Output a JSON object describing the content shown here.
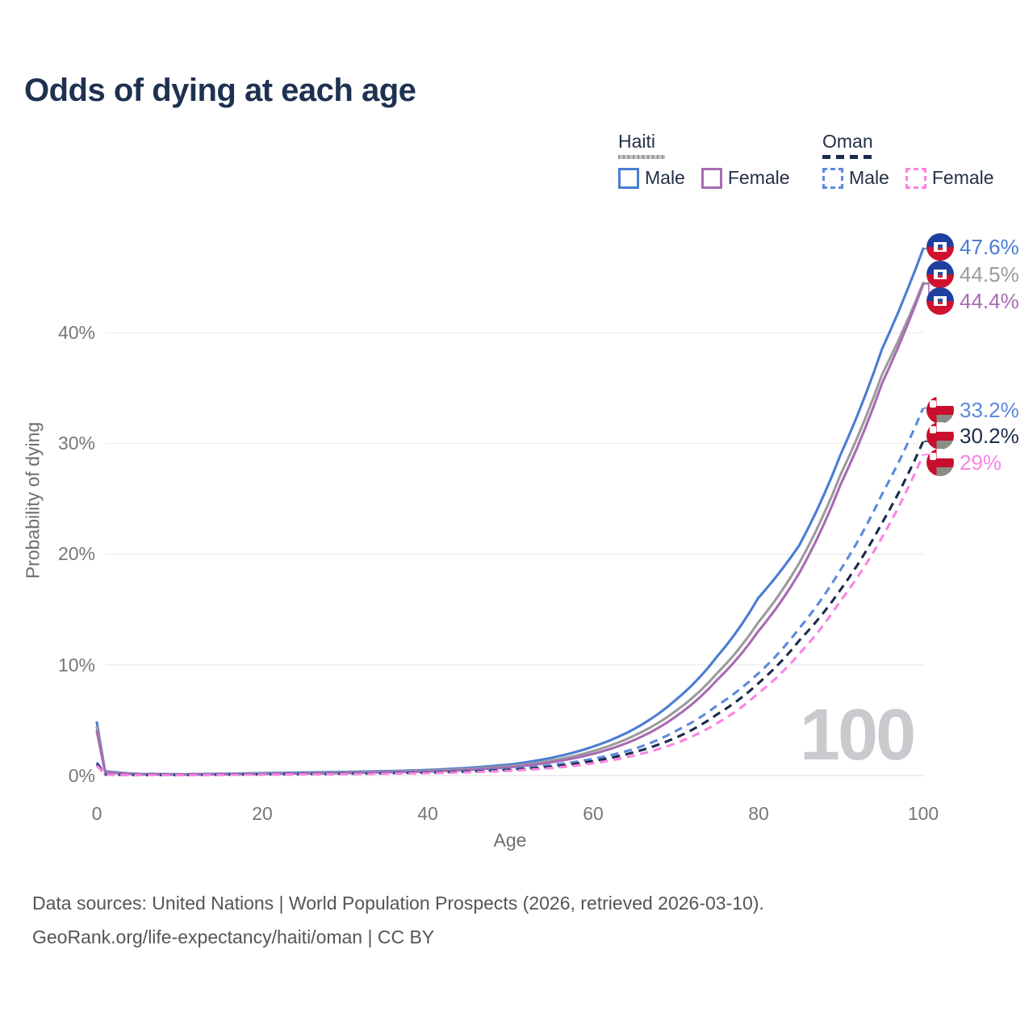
{
  "header": {
    "title": "Odds of dying at each age"
  },
  "legend": {
    "groups": [
      {
        "country": "Haiti",
        "line_style": "solid",
        "items": [
          {
            "label": "Male"
          },
          {
            "label": "Female"
          }
        ]
      },
      {
        "country": "Oman",
        "line_style": "dashed",
        "items": [
          {
            "label": "Male"
          },
          {
            "label": "Female"
          }
        ]
      }
    ]
  },
  "axes": {
    "y_title": "Probability of dying",
    "x_title": "Age",
    "y_ticks": [
      "40%",
      "30%",
      "20%",
      "10%",
      "0%"
    ],
    "x_ticks": [
      "0",
      "20",
      "40",
      "60",
      "80",
      "100"
    ]
  },
  "watermark": "100",
  "icons": {
    "haiti_flag": "circular Haiti flag (blue over red, white emblem)",
    "oman_flag": "circular Oman flag (red band, white/red/green stripes)"
  },
  "colors": {
    "title_text": "#1e3150",
    "axis_text": "#76777c",
    "grid": "#ededf0",
    "watermark": "#c9c9ce",
    "haiti_total_line": "#9b9b9b",
    "oman_total_line": "#1b2b4d"
  },
  "footer": {
    "line1": "Data sources: United Nations | World Population Prospects (2026, retrieved 2026-03-10).",
    "line2": "GeoRank.org/life-expectancy/haiti/oman | CC BY"
  },
  "chart_data": {
    "type": "line",
    "title": "Odds of dying at each age",
    "xlabel": "Age",
    "ylabel": "Probability of dying",
    "xlim": [
      0,
      100
    ],
    "ylim_pct": [
      0,
      50
    ],
    "x_ticks": [
      0,
      20,
      40,
      60,
      80,
      100
    ],
    "y_ticks_pct": [
      40,
      30,
      20,
      10,
      0
    ],
    "grid": "horizontal",
    "legend_position": "top-right",
    "age_cursor": "100",
    "series": [
      {
        "name": "Haiti male",
        "country": "Haiti",
        "sex": "male",
        "style": "solid",
        "color": "#4a7dd3",
        "end_label": "47.6%",
        "end_value_pct": 47.6,
        "points_age_pct": [
          [
            0,
            4.8
          ],
          [
            1,
            0.4
          ],
          [
            5,
            0.15
          ],
          [
            10,
            0.12
          ],
          [
            15,
            0.16
          ],
          [
            20,
            0.22
          ],
          [
            25,
            0.28
          ],
          [
            30,
            0.33
          ],
          [
            35,
            0.4
          ],
          [
            40,
            0.5
          ],
          [
            45,
            0.7
          ],
          [
            50,
            1.0
          ],
          [
            55,
            1.6
          ],
          [
            60,
            2.6
          ],
          [
            65,
            4.2
          ],
          [
            70,
            6.8
          ],
          [
            75,
            10.7
          ],
          [
            80,
            16.0
          ],
          [
            85,
            20.8
          ],
          [
            90,
            29.0
          ],
          [
            95,
            38.5
          ],
          [
            100,
            47.6
          ]
        ]
      },
      {
        "name": "Haiti both sexes",
        "country": "Haiti",
        "sex": "both",
        "style": "solid",
        "color": "#9b9b9b",
        "end_label": "44.5%",
        "end_value_pct": 44.5,
        "points_age_pct": [
          [
            0,
            4.4
          ],
          [
            1,
            0.35
          ],
          [
            5,
            0.13
          ],
          [
            10,
            0.1
          ],
          [
            15,
            0.13
          ],
          [
            20,
            0.18
          ],
          [
            25,
            0.23
          ],
          [
            30,
            0.28
          ],
          [
            35,
            0.34
          ],
          [
            40,
            0.43
          ],
          [
            45,
            0.6
          ],
          [
            50,
            0.85
          ],
          [
            55,
            1.35
          ],
          [
            60,
            2.2
          ],
          [
            65,
            3.6
          ],
          [
            70,
            5.8
          ],
          [
            75,
            9.2
          ],
          [
            80,
            13.8
          ],
          [
            85,
            19.2
          ],
          [
            90,
            27.2
          ],
          [
            95,
            36.2
          ],
          [
            100,
            44.5
          ]
        ]
      },
      {
        "name": "Haiti female",
        "country": "Haiti",
        "sex": "female",
        "style": "solid",
        "color": "#a86bb3",
        "end_label": "44.4%",
        "end_value_pct": 44.4,
        "points_age_pct": [
          [
            0,
            4.0
          ],
          [
            1,
            0.3
          ],
          [
            5,
            0.12
          ],
          [
            10,
            0.09
          ],
          [
            15,
            0.11
          ],
          [
            20,
            0.15
          ],
          [
            25,
            0.19
          ],
          [
            30,
            0.23
          ],
          [
            35,
            0.29
          ],
          [
            40,
            0.37
          ],
          [
            45,
            0.52
          ],
          [
            50,
            0.75
          ],
          [
            55,
            1.2
          ],
          [
            60,
            1.95
          ],
          [
            65,
            3.2
          ],
          [
            70,
            5.3
          ],
          [
            75,
            8.6
          ],
          [
            80,
            13.0
          ],
          [
            85,
            18.3
          ],
          [
            90,
            26.3
          ],
          [
            95,
            35.4
          ],
          [
            100,
            44.4
          ]
        ]
      },
      {
        "name": "Oman male",
        "country": "Oman",
        "sex": "male",
        "style": "dashed",
        "color": "#5c89dd",
        "end_label": "33.2%",
        "end_value_pct": 33.2,
        "points_age_pct": [
          [
            0,
            1.2
          ],
          [
            1,
            0.1
          ],
          [
            5,
            0.05
          ],
          [
            10,
            0.06
          ],
          [
            15,
            0.09
          ],
          [
            20,
            0.13
          ],
          [
            25,
            0.16
          ],
          [
            30,
            0.19
          ],
          [
            35,
            0.23
          ],
          [
            40,
            0.3
          ],
          [
            45,
            0.42
          ],
          [
            50,
            0.6
          ],
          [
            55,
            0.95
          ],
          [
            60,
            1.5
          ],
          [
            65,
            2.4
          ],
          [
            70,
            4.0
          ],
          [
            75,
            6.3
          ],
          [
            80,
            9.2
          ],
          [
            85,
            13.3
          ],
          [
            90,
            18.6
          ],
          [
            95,
            25.4
          ],
          [
            100,
            33.2
          ]
        ]
      },
      {
        "name": "Oman both sexes",
        "country": "Oman",
        "sex": "both",
        "style": "dashed",
        "color": "#1b2b4d",
        "end_label": "30.2%",
        "end_value_pct": 30.2,
        "points_age_pct": [
          [
            0,
            1.05
          ],
          [
            1,
            0.09
          ],
          [
            5,
            0.05
          ],
          [
            10,
            0.05
          ],
          [
            15,
            0.08
          ],
          [
            20,
            0.11
          ],
          [
            25,
            0.13
          ],
          [
            30,
            0.16
          ],
          [
            35,
            0.2
          ],
          [
            40,
            0.26
          ],
          [
            45,
            0.36
          ],
          [
            50,
            0.52
          ],
          [
            55,
            0.8
          ],
          [
            60,
            1.3
          ],
          [
            65,
            2.1
          ],
          [
            70,
            3.4
          ],
          [
            75,
            5.5
          ],
          [
            80,
            8.3
          ],
          [
            85,
            12.2
          ],
          [
            90,
            16.8
          ],
          [
            95,
            22.8
          ],
          [
            100,
            30.2
          ]
        ]
      },
      {
        "name": "Oman female",
        "country": "Oman",
        "sex": "female",
        "style": "dashed",
        "color": "#fb83e3",
        "end_label": "29%",
        "end_value_pct": 29.0,
        "points_age_pct": [
          [
            0,
            0.9
          ],
          [
            1,
            0.08
          ],
          [
            5,
            0.04
          ],
          [
            10,
            0.04
          ],
          [
            15,
            0.06
          ],
          [
            20,
            0.09
          ],
          [
            25,
            0.11
          ],
          [
            30,
            0.13
          ],
          [
            35,
            0.17
          ],
          [
            40,
            0.22
          ],
          [
            45,
            0.3
          ],
          [
            50,
            0.44
          ],
          [
            55,
            0.68
          ],
          [
            60,
            1.1
          ],
          [
            65,
            1.8
          ],
          [
            70,
            2.9
          ],
          [
            75,
            4.7
          ],
          [
            80,
            7.4
          ],
          [
            85,
            11.0
          ],
          [
            90,
            15.8
          ],
          [
            95,
            21.5
          ],
          [
            100,
            29.0
          ]
        ]
      }
    ]
  }
}
